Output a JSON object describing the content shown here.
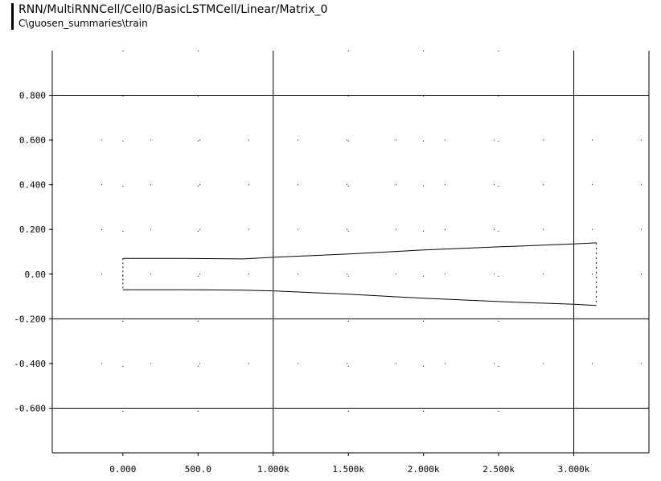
{
  "header": {
    "title": "RNN/MultiRNNCell/Cell0/BasicLSTMCell/Linear/Matrix_0",
    "subtitle": "C\\guosen_summaries\\train"
  },
  "chart_data": {
    "type": "area",
    "title": "RNN/MultiRNNCell/Cell0/BasicLSTMCell/Linear/Matrix_0",
    "subtitle": "C\\guosen_summaries\\train",
    "xlabel": "",
    "ylabel": "",
    "xlim": [
      -470,
      3500
    ],
    "ylim": [
      -0.8,
      1.0
    ],
    "grid": true,
    "x_ticks": [
      0,
      500,
      1000,
      1500,
      2000,
      2500,
      3000
    ],
    "x_tick_labels": [
      "0.000",
      "500.0",
      "1.000k",
      "1.500k",
      "2.000k",
      "2.500k",
      "3.000k"
    ],
    "y_ticks": [
      0.8,
      0.6,
      0.4,
      0.2,
      0.0,
      -0.2,
      -0.4,
      -0.6
    ],
    "y_tick_labels": [
      "0.800",
      "0.600",
      "0.400",
      "0.200",
      "0.00",
      "-0.200",
      "-0.400",
      "-0.600"
    ],
    "series": [
      {
        "x": [
          0,
          30,
          400,
          800,
          1000,
          1500,
          2000,
          2500,
          3000,
          3150
        ],
        "y": [
          0.07,
          0.07,
          0.07,
          0.068,
          0.075,
          0.09,
          0.108,
          0.122,
          0.135,
          0.14
        ]
      },
      {
        "x": [
          0,
          30,
          400,
          800,
          1000,
          1500,
          2000,
          2500,
          3000,
          3150
        ],
        "y": [
          -0.07,
          -0.07,
          -0.07,
          -0.072,
          -0.075,
          -0.09,
          -0.108,
          -0.123,
          -0.135,
          -0.14
        ]
      }
    ]
  }
}
